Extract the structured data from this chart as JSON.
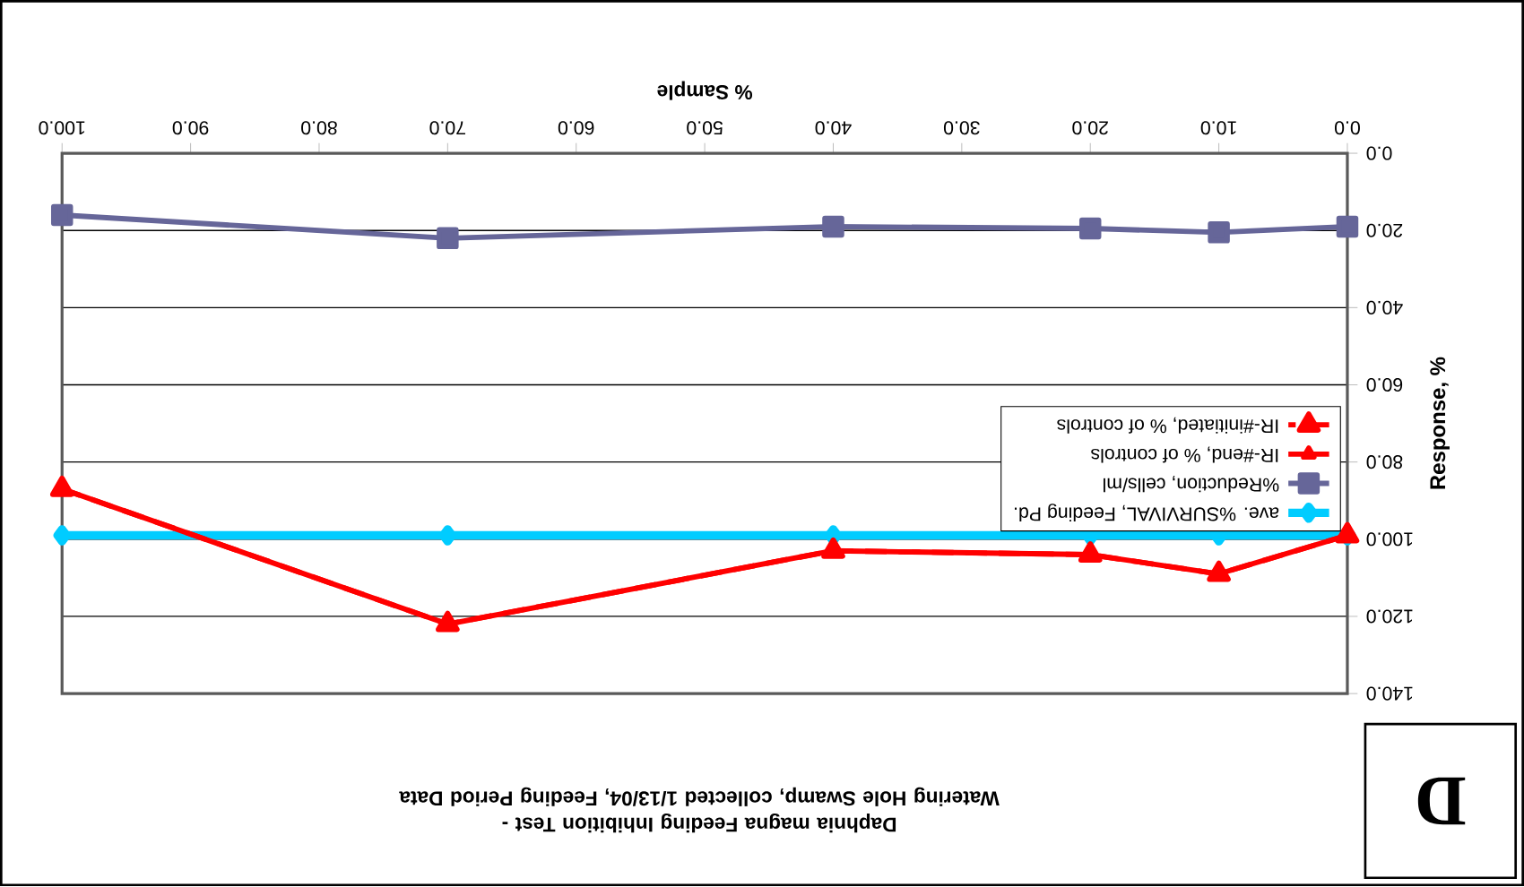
{
  "chart_data": {
    "type": "line",
    "title": "Daphnia magna Feeding Inhibition Test -\nWatering Hole Swamp, collected 1/13/04, Feeding Period Data",
    "xlabel": "% Sample",
    "ylabel": "Response, %",
    "x": [
      0,
      10,
      20,
      40,
      70,
      100
    ],
    "series": [
      {
        "name": "ave. %SURVIVAL, Feeding Pd.",
        "color": "#00ccff",
        "marker": "diamond",
        "line_style": "solid",
        "values": [
          99,
          99,
          99,
          99,
          99,
          99
        ]
      },
      {
        "name": "%Reduction, cells/ml",
        "color": "#666699",
        "marker": "square",
        "line_style": "solid",
        "values": [
          19,
          20.5,
          19.5,
          19,
          22,
          16
        ]
      },
      {
        "name": "IR-#end, % of controls",
        "color": "#ff0000",
        "marker": "triangle",
        "line_style": "solid",
        "values": [
          99,
          109,
          104,
          103,
          122,
          87
        ]
      },
      {
        "name": "IR-#initiated, % of controls",
        "color": "#ff0000",
        "marker": "triangle",
        "line_style": "dashed",
        "values": [
          99,
          109,
          104,
          103,
          122,
          87
        ]
      }
    ],
    "xlim": [
      100,
      0
    ],
    "xticks": [
      {
        "value": 0,
        "label": "0.0"
      },
      {
        "value": 10,
        "label": "10.0"
      },
      {
        "value": 20,
        "label": "20.0"
      },
      {
        "value": 30,
        "label": "30.0"
      },
      {
        "value": 40,
        "label": "40.0"
      },
      {
        "value": 50,
        "label": "50.0"
      },
      {
        "value": 60,
        "label": "60.0"
      },
      {
        "value": 70,
        "label": "70.0"
      },
      {
        "value": 80,
        "label": "80.0"
      },
      {
        "value": 90,
        "label": "90.0"
      },
      {
        "value": 100,
        "label": "100.0"
      }
    ],
    "ylim": [
      140,
      0
    ],
    "yticks": [
      {
        "value": 0,
        "label": "0.0"
      },
      {
        "value": 20,
        "label": "20.0"
      },
      {
        "value": 40,
        "label": "40.0"
      },
      {
        "value": 60,
        "label": "60.0"
      },
      {
        "value": 80,
        "label": "80.0"
      },
      {
        "value": 100,
        "label": "100.0"
      },
      {
        "value": 120,
        "label": "120.0"
      },
      {
        "value": 140,
        "label": "140.0"
      }
    ],
    "grid": "y",
    "legend": "right",
    "annotations": [
      "D"
    ]
  }
}
